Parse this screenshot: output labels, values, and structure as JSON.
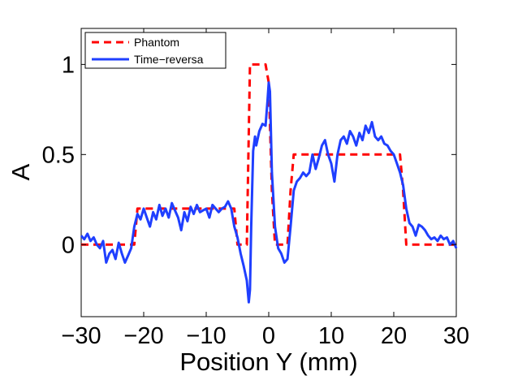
{
  "chart_data": {
    "type": "line",
    "title": "",
    "xlabel": "Position Y (mm)",
    "ylabel": "A",
    "xlim": [
      -30,
      30
    ],
    "ylim": [
      -0.4,
      1.2
    ],
    "xticks": [
      -30,
      -20,
      -10,
      0,
      10,
      20,
      30
    ],
    "xtick_labels": [
      "−30",
      "−20",
      "−10",
      "0",
      "10",
      "20",
      "30"
    ],
    "yticks": [
      0,
      0.5,
      1
    ],
    "ytick_labels": [
      "0",
      "0.5",
      "1"
    ],
    "legend_position": "top-left",
    "series": [
      {
        "name": "Phantom",
        "color": "#ff0000",
        "style": "dashed",
        "x": [
          -30,
          -21.5,
          -21,
          -5.5,
          -5,
          -3.5,
          -3,
          -0.5,
          0,
          0.5,
          1,
          3,
          3.5,
          4,
          21,
          21.5,
          22,
          30
        ],
        "y": [
          0,
          0,
          0.2,
          0.2,
          0,
          0,
          1,
          1,
          0.9,
          0.3,
          0,
          0,
          0.3,
          0.5,
          0.5,
          0.3,
          0,
          0
        ]
      },
      {
        "name": "Time−reversa",
        "color": "#1f3fff",
        "style": "solid",
        "x": [
          -30,
          -29.5,
          -29,
          -28.5,
          -28,
          -27.5,
          -27,
          -26.5,
          -26,
          -25.5,
          -25,
          -24.5,
          -24,
          -23.5,
          -23,
          -22.5,
          -22,
          -21.5,
          -21,
          -20.5,
          -20,
          -19.5,
          -19,
          -18.5,
          -18,
          -17.5,
          -17,
          -16.5,
          -16,
          -15.5,
          -15,
          -14.5,
          -14,
          -13.5,
          -13,
          -12.5,
          -12,
          -11.5,
          -11,
          -10.5,
          -10,
          -9.5,
          -9,
          -8.5,
          -8,
          -7.5,
          -7,
          -6.5,
          -6,
          -5.5,
          -5,
          -4.5,
          -4,
          -3.5,
          -3.2,
          -3,
          -2.8,
          -2.5,
          -2.2,
          -2,
          -1.5,
          -1,
          -0.5,
          -0.2,
          0,
          0.2,
          0.5,
          1,
          1.5,
          2,
          2.5,
          3,
          3.5,
          4,
          4.5,
          5,
          5.5,
          6,
          6.5,
          7,
          7.5,
          8,
          8.5,
          9,
          9.5,
          10,
          10.5,
          11,
          11.5,
          12,
          12.5,
          13,
          13.5,
          14,
          14.5,
          15,
          15.5,
          16,
          16.5,
          17,
          17.5,
          18,
          18.5,
          19,
          19.5,
          20,
          20.5,
          21,
          21.5,
          22,
          22.5,
          23,
          23.5,
          24,
          24.5,
          25,
          25.5,
          26,
          26.5,
          27,
          27.5,
          28,
          28.5,
          29,
          29.5,
          30
        ],
        "y": [
          0.05,
          0.03,
          0.06,
          0.02,
          0.04,
          0.0,
          -0.02,
          0.02,
          -0.1,
          -0.05,
          -0.03,
          -0.08,
          0.01,
          -0.05,
          -0.1,
          -0.06,
          -0.02,
          0.1,
          0.17,
          0.14,
          0.2,
          0.15,
          0.1,
          0.18,
          0.14,
          0.22,
          0.16,
          0.2,
          0.15,
          0.23,
          0.19,
          0.15,
          0.08,
          0.18,
          0.13,
          0.21,
          0.17,
          0.22,
          0.18,
          0.19,
          0.2,
          0.15,
          0.22,
          0.2,
          0.18,
          0.2,
          0.21,
          0.24,
          0.2,
          0.1,
          0.04,
          -0.05,
          -0.12,
          -0.2,
          -0.32,
          -0.25,
          0.1,
          0.52,
          0.6,
          0.55,
          0.63,
          0.67,
          0.66,
          0.8,
          0.9,
          0.85,
          0.4,
          0.1,
          -0.02,
          -0.05,
          -0.1,
          -0.08,
          0.1,
          0.3,
          0.35,
          0.37,
          0.4,
          0.38,
          0.4,
          0.5,
          0.42,
          0.48,
          0.55,
          0.58,
          0.5,
          0.45,
          0.35,
          0.5,
          0.58,
          0.6,
          0.56,
          0.63,
          0.6,
          0.55,
          0.62,
          0.58,
          0.66,
          0.62,
          0.68,
          0.6,
          0.58,
          0.6,
          0.56,
          0.55,
          0.52,
          0.5,
          0.45,
          0.4,
          0.33,
          0.2,
          0.12,
          0.1,
          0.05,
          0.11,
          0.1,
          0.08,
          0.05,
          0.03,
          0.04,
          0.02,
          0.05,
          0.03,
          0.04,
          0.0,
          0.02,
          -0.02
        ]
      }
    ]
  }
}
